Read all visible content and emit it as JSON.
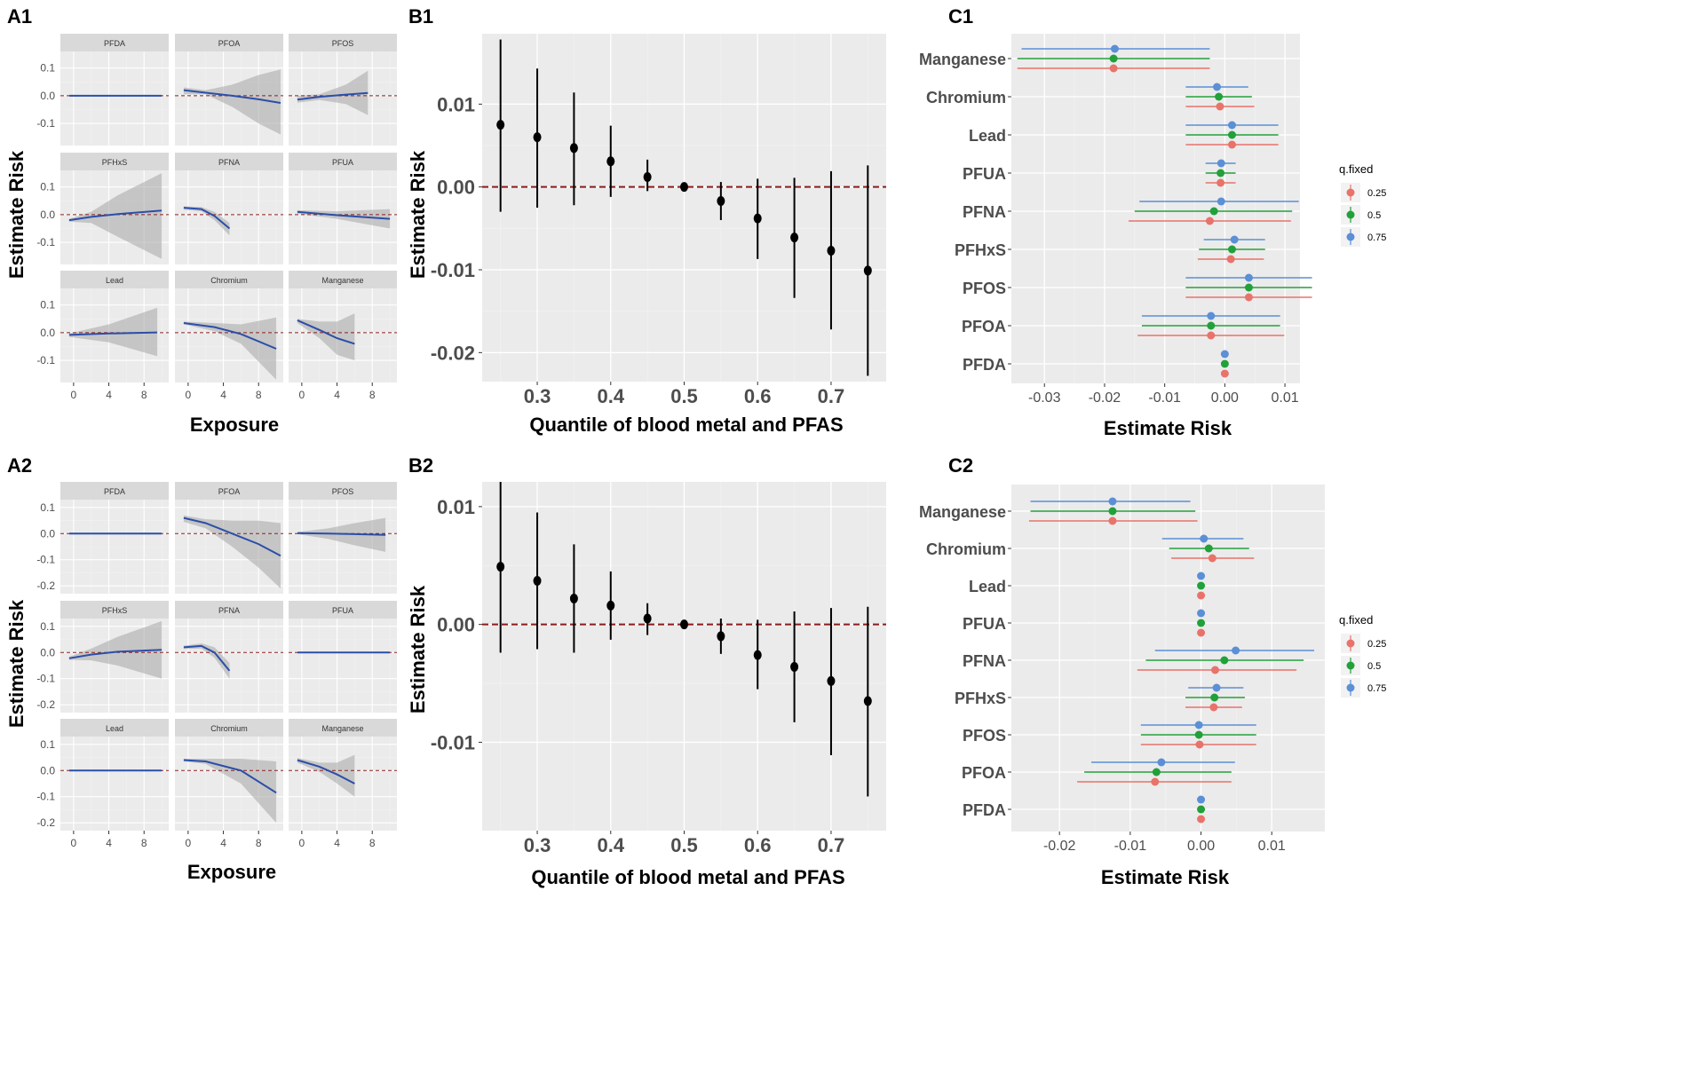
{
  "chart_data": [
    {
      "id": "A1",
      "type": "line",
      "panel_label": "A1",
      "xlabel": "Exposure",
      "ylabel": "Estimate Risk",
      "xlim": [
        -1.5,
        10.8
      ],
      "ylim": [
        -0.18,
        0.16
      ],
      "xticks": [
        0,
        4,
        8
      ],
      "xtick_labels": [
        "0",
        "4",
        "8"
      ],
      "yticks": [
        -0.1,
        0.0,
        0.1
      ],
      "ytick_labels": [
        "-0.1",
        "0.0",
        "0.1"
      ],
      "reference_line": 0,
      "facets": [
        {
          "name": "PFDA",
          "x": [
            -0.5,
            10
          ],
          "y": [
            0,
            0
          ],
          "lo": [
            -0.002,
            -0.002
          ],
          "hi": [
            0.002,
            0.002
          ]
        },
        {
          "name": "PFOA",
          "x": [
            -0.5,
            2,
            5,
            8,
            10.5
          ],
          "y": [
            0.02,
            0.011,
            0.0,
            -0.013,
            -0.026
          ],
          "lo": [
            0.005,
            0.005,
            -0.04,
            -0.1,
            -0.14
          ],
          "hi": [
            0.03,
            0.02,
            0.04,
            0.075,
            0.095
          ]
        },
        {
          "name": "PFOS",
          "x": [
            -0.5,
            2,
            5,
            7.5
          ],
          "y": [
            -0.014,
            -0.004,
            0.004,
            0.01
          ],
          "lo": [
            -0.025,
            -0.015,
            -0.03,
            -0.07
          ],
          "hi": [
            0.0,
            0.005,
            0.04,
            0.09
          ]
        },
        {
          "name": "PFHxS",
          "x": [
            -0.5,
            2,
            5,
            10
          ],
          "y": [
            -0.02,
            -0.008,
            0.002,
            0.015
          ],
          "lo": [
            -0.025,
            -0.03,
            -0.08,
            -0.16
          ],
          "hi": [
            -0.015,
            0.01,
            0.07,
            0.15
          ]
        },
        {
          "name": "PFNA",
          "x": [
            -0.5,
            1.5,
            3,
            4.7
          ],
          "y": [
            0.025,
            0.02,
            -0.005,
            -0.05
          ],
          "lo": [
            0.018,
            0.012,
            -0.02,
            -0.075
          ],
          "hi": [
            0.03,
            0.028,
            0.01,
            -0.03
          ]
        },
        {
          "name": "PFUA",
          "x": [
            -0.5,
            4,
            10
          ],
          "y": [
            0.01,
            -0.002,
            -0.015
          ],
          "lo": [
            0.003,
            -0.015,
            -0.05
          ],
          "hi": [
            0.016,
            0.012,
            0.02
          ]
        },
        {
          "name": "Lead",
          "x": [
            -0.5,
            4,
            9.5
          ],
          "y": [
            -0.008,
            -0.003,
            0.001
          ],
          "lo": [
            -0.015,
            -0.035,
            -0.085
          ],
          "hi": [
            -0.003,
            0.03,
            0.09
          ]
        },
        {
          "name": "Chromium",
          "x": [
            -0.5,
            3,
            6,
            10
          ],
          "y": [
            0.035,
            0.02,
            -0.005,
            -0.058
          ],
          "lo": [
            0.03,
            0.005,
            -0.04,
            -0.17
          ],
          "hi": [
            0.04,
            0.035,
            0.03,
            0.055
          ]
        },
        {
          "name": "Manganese",
          "x": [
            -0.5,
            2,
            4,
            6
          ],
          "y": [
            0.045,
            0.01,
            -0.02,
            -0.04
          ],
          "lo": [
            0.035,
            -0.02,
            -0.08,
            -0.1
          ],
          "hi": [
            0.05,
            0.04,
            0.04,
            0.07
          ]
        }
      ]
    },
    {
      "id": "B1",
      "type": "scatter",
      "panel_label": "B1",
      "xlabel": "Quantile of blood metal and PFAS",
      "ylabel": "Estimate Risk",
      "xlim": [
        0.225,
        0.775
      ],
      "ylim": [
        -0.0235,
        0.0185
      ],
      "xticks": [
        0.3,
        0.4,
        0.5,
        0.6,
        0.7
      ],
      "xtick_labels": [
        "0.3",
        "0.4",
        "0.5",
        "0.6",
        "0.7"
      ],
      "yticks": [
        0.01,
        0.0,
        -0.01,
        -0.02
      ],
      "ytick_labels": [
        "0.01",
        "0.00",
        "-0.01",
        "-0.02"
      ],
      "reference_line": 0,
      "x": [
        0.25,
        0.3,
        0.35,
        0.4,
        0.45,
        0.5,
        0.55,
        0.6,
        0.65,
        0.7,
        0.75
      ],
      "y": [
        0.0075,
        0.006,
        0.0047,
        0.0031,
        0.0012,
        0.0,
        -0.0017,
        -0.0038,
        -0.0061,
        -0.0077,
        -0.0101
      ],
      "lo": [
        -0.003,
        -0.0025,
        -0.0022,
        -0.0012,
        -0.0005,
        0.0,
        -0.004,
        -0.0087,
        -0.0134,
        -0.0172,
        -0.0228
      ],
      "hi": [
        0.0178,
        0.0143,
        0.0114,
        0.0074,
        0.0033,
        0.0,
        0.0006,
        0.001,
        0.0011,
        0.0019,
        0.0026
      ]
    },
    {
      "id": "C1",
      "type": "scatter",
      "panel_label": "C1",
      "xlabel": "Estimate Risk",
      "xlim": [
        -0.0355,
        0.0125
      ],
      "xticks": [
        -0.03,
        -0.02,
        -0.01,
        0.0,
        0.01
      ],
      "xtick_labels": [
        "-0.03",
        "-0.02",
        "-0.01",
        "0.00",
        "0.01"
      ],
      "categories": [
        "Manganese",
        "Chromium",
        "Lead",
        "PFUA",
        "PFNA",
        "PFHxS",
        "PFOS",
        "PFOA",
        "PFDA"
      ],
      "legend": {
        "title": "q.fixed",
        "entries": [
          "0.25",
          "0.5",
          "0.75"
        ],
        "colors": [
          "#e8736a",
          "#22a03a",
          "#5b8fd6"
        ]
      },
      "series": [
        {
          "name": "0.25",
          "values": [
            -0.0185,
            -0.0008,
            0.0012,
            -0.0007,
            -0.0025,
            0.001,
            0.004,
            -0.0023,
            0.0
          ],
          "lo": [
            -0.0345,
            -0.0065,
            -0.0065,
            -0.0032,
            -0.016,
            -0.0045,
            -0.0065,
            -0.0145,
            0.0
          ],
          "hi": [
            -0.0025,
            0.0049,
            0.0089,
            0.0018,
            0.011,
            0.0065,
            0.0145,
            0.0099,
            0.0
          ]
        },
        {
          "name": "0.5",
          "values": [
            -0.0185,
            -0.001,
            0.0012,
            -0.0007,
            -0.0018,
            0.0012,
            0.004,
            -0.0023,
            0.0
          ],
          "lo": [
            -0.0345,
            -0.0065,
            -0.0065,
            -0.0032,
            -0.015,
            -0.0043,
            -0.0065,
            -0.0138,
            0.0
          ],
          "hi": [
            -0.0025,
            0.0045,
            0.0089,
            0.0018,
            0.0112,
            0.0067,
            0.0145,
            0.0092,
            0.0
          ]
        },
        {
          "name": "0.75",
          "values": [
            -0.0183,
            -0.0013,
            0.0012,
            -0.0006,
            -0.0006,
            0.0016,
            0.004,
            -0.0023,
            0.0
          ],
          "lo": [
            -0.0338,
            -0.0065,
            -0.0065,
            -0.0032,
            -0.0142,
            -0.0035,
            -0.0065,
            -0.0138,
            0.0
          ],
          "hi": [
            -0.0025,
            0.0039,
            0.0089,
            0.0018,
            0.0123,
            0.0067,
            0.0145,
            0.0092,
            0.0
          ]
        }
      ]
    },
    {
      "id": "A2",
      "type": "line",
      "panel_label": "A2",
      "xlabel": "Exposure",
      "ylabel": "Estimate Risk",
      "xlim": [
        -1.5,
        10.8
      ],
      "ylim": [
        -0.23,
        0.13
      ],
      "xticks": [
        0,
        4,
        8
      ],
      "xtick_labels": [
        "0",
        "4",
        "8"
      ],
      "yticks": [
        -0.2,
        -0.1,
        0.0,
        0.1
      ],
      "ytick_labels": [
        "-0.2",
        "-0.1",
        "0.0",
        "0.1"
      ],
      "reference_line": 0,
      "facets": [
        {
          "name": "PFDA",
          "x": [
            -0.5,
            10
          ],
          "y": [
            0,
            0
          ],
          "lo": [
            -0.002,
            -0.002
          ],
          "hi": [
            0.002,
            0.002
          ]
        },
        {
          "name": "PFOA",
          "x": [
            -0.5,
            2,
            5,
            8,
            10.5
          ],
          "y": [
            0.06,
            0.04,
            0.0,
            -0.04,
            -0.085
          ],
          "lo": [
            0.045,
            0.02,
            -0.05,
            -0.13,
            -0.21
          ],
          "hi": [
            0.07,
            0.055,
            0.05,
            0.05,
            0.04
          ]
        },
        {
          "name": "PFOS",
          "x": [
            -0.5,
            3,
            6,
            9.5
          ],
          "y": [
            0.002,
            0.0,
            -0.002,
            -0.005
          ],
          "lo": [
            -0.002,
            -0.02,
            -0.045,
            -0.07
          ],
          "hi": [
            0.006,
            0.02,
            0.04,
            0.06
          ]
        },
        {
          "name": "PFHxS",
          "x": [
            -0.5,
            2,
            5,
            10
          ],
          "y": [
            -0.022,
            -0.008,
            0.003,
            0.01
          ],
          "lo": [
            -0.028,
            -0.03,
            -0.05,
            -0.1
          ],
          "hi": [
            -0.016,
            0.015,
            0.06,
            0.12
          ]
        },
        {
          "name": "PFNA",
          "x": [
            -0.5,
            1.5,
            3,
            4.7
          ],
          "y": [
            0.02,
            0.025,
            0.0,
            -0.07
          ],
          "lo": [
            0.014,
            0.015,
            -0.02,
            -0.1
          ],
          "hi": [
            0.026,
            0.035,
            0.02,
            -0.04
          ]
        },
        {
          "name": "PFUA",
          "x": [
            -0.5,
            10
          ],
          "y": [
            0,
            0
          ],
          "lo": [
            -0.002,
            -0.002
          ],
          "hi": [
            0.002,
            0.002
          ]
        },
        {
          "name": "Lead",
          "x": [
            -0.5,
            10
          ],
          "y": [
            0,
            0
          ],
          "lo": [
            -0.002,
            -0.002
          ],
          "hi": [
            0.002,
            0.002
          ]
        },
        {
          "name": "Chromium",
          "x": [
            -0.5,
            2,
            6,
            10
          ],
          "y": [
            0.04,
            0.035,
            0.0,
            -0.085
          ],
          "lo": [
            0.035,
            0.025,
            -0.05,
            -0.2
          ],
          "hi": [
            0.045,
            0.045,
            0.045,
            0.035
          ]
        },
        {
          "name": "Manganese",
          "x": [
            -0.5,
            2,
            4,
            6
          ],
          "y": [
            0.04,
            0.015,
            -0.015,
            -0.05
          ],
          "lo": [
            0.03,
            -0.005,
            -0.05,
            -0.1
          ],
          "hi": [
            0.048,
            0.03,
            0.03,
            0.06
          ]
        }
      ]
    },
    {
      "id": "B2",
      "type": "scatter",
      "panel_label": "B2",
      "xlabel": "Quantile of blood metal and PFAS",
      "ylabel": "Estimate Risk",
      "xlim": [
        0.225,
        0.775
      ],
      "ylim": [
        -0.0175,
        0.0121
      ],
      "xticks": [
        0.3,
        0.4,
        0.5,
        0.6,
        0.7
      ],
      "xtick_labels": [
        "0.3",
        "0.4",
        "0.5",
        "0.6",
        "0.7"
      ],
      "yticks": [
        0.01,
        0.0,
        -0.01
      ],
      "ytick_labels": [
        "0.01",
        "0.00",
        "-0.01"
      ],
      "reference_line": 0,
      "x": [
        0.25,
        0.3,
        0.35,
        0.4,
        0.45,
        0.5,
        0.55,
        0.6,
        0.65,
        0.7,
        0.75
      ],
      "y": [
        0.0049,
        0.0037,
        0.0022,
        0.0016,
        0.0005,
        0.0,
        -0.001,
        -0.0026,
        -0.0036,
        -0.0048,
        -0.0065
      ],
      "lo": [
        -0.0024,
        -0.0021,
        -0.0024,
        -0.0013,
        -0.0009,
        0.0,
        -0.0025,
        -0.0055,
        -0.0083,
        -0.0111,
        -0.0146
      ],
      "hi": [
        0.0121,
        0.0095,
        0.0068,
        0.0045,
        0.0018,
        0.0,
        0.0005,
        0.0004,
        0.0011,
        0.0014,
        0.0015
      ]
    },
    {
      "id": "C2",
      "type": "scatter",
      "panel_label": "C2",
      "xlabel": "Estimate Risk",
      "xlim": [
        -0.0268,
        0.0175
      ],
      "xticks": [
        -0.02,
        -0.01,
        0.0,
        0.01
      ],
      "xtick_labels": [
        "-0.02",
        "-0.01",
        "0.00",
        "0.01"
      ],
      "categories": [
        "Manganese",
        "Chromium",
        "Lead",
        "PFUA",
        "PFNA",
        "PFHxS",
        "PFOS",
        "PFOA",
        "PFDA"
      ],
      "legend": {
        "title": "q.fixed",
        "entries": [
          "0.25",
          "0.5",
          "0.75"
        ],
        "colors": [
          "#e8736a",
          "#22a03a",
          "#5b8fd6"
        ]
      },
      "series": [
        {
          "name": "0.25",
          "values": [
            -0.0125,
            0.0016,
            0.0,
            0.0,
            0.002,
            0.0018,
            -0.0002,
            -0.0065,
            0.0
          ],
          "lo": [
            -0.0243,
            -0.0042,
            0.0,
            0.0,
            -0.009,
            -0.0022,
            -0.0085,
            -0.0175,
            0.0
          ],
          "hi": [
            -0.0005,
            0.0075,
            0.0,
            0.0,
            0.0135,
            0.0058,
            0.0078,
            0.0043,
            0.0
          ]
        },
        {
          "name": "0.5",
          "values": [
            -0.0125,
            0.0011,
            0.0,
            0.0,
            0.0033,
            0.0019,
            -0.0003,
            -0.0063,
            0.0
          ],
          "lo": [
            -0.0241,
            -0.0045,
            0.0,
            0.0,
            -0.0078,
            -0.0022,
            -0.0085,
            -0.0165,
            0.0
          ],
          "hi": [
            -0.0008,
            0.0068,
            0.0,
            0.0,
            0.0145,
            0.0062,
            0.0078,
            0.0043,
            0.0
          ]
        },
        {
          "name": "0.75",
          "values": [
            -0.0125,
            0.0004,
            0.0,
            0.0,
            0.0049,
            0.0022,
            -0.0003,
            -0.0056,
            0.0
          ],
          "lo": [
            -0.0241,
            -0.0055,
            0.0,
            0.0,
            -0.0065,
            -0.0018,
            -0.0085,
            -0.0155,
            0.0
          ],
          "hi": [
            -0.0015,
            0.006,
            0.0,
            0.0,
            0.016,
            0.006,
            0.0078,
            0.0048,
            0.0
          ]
        }
      ]
    }
  ]
}
